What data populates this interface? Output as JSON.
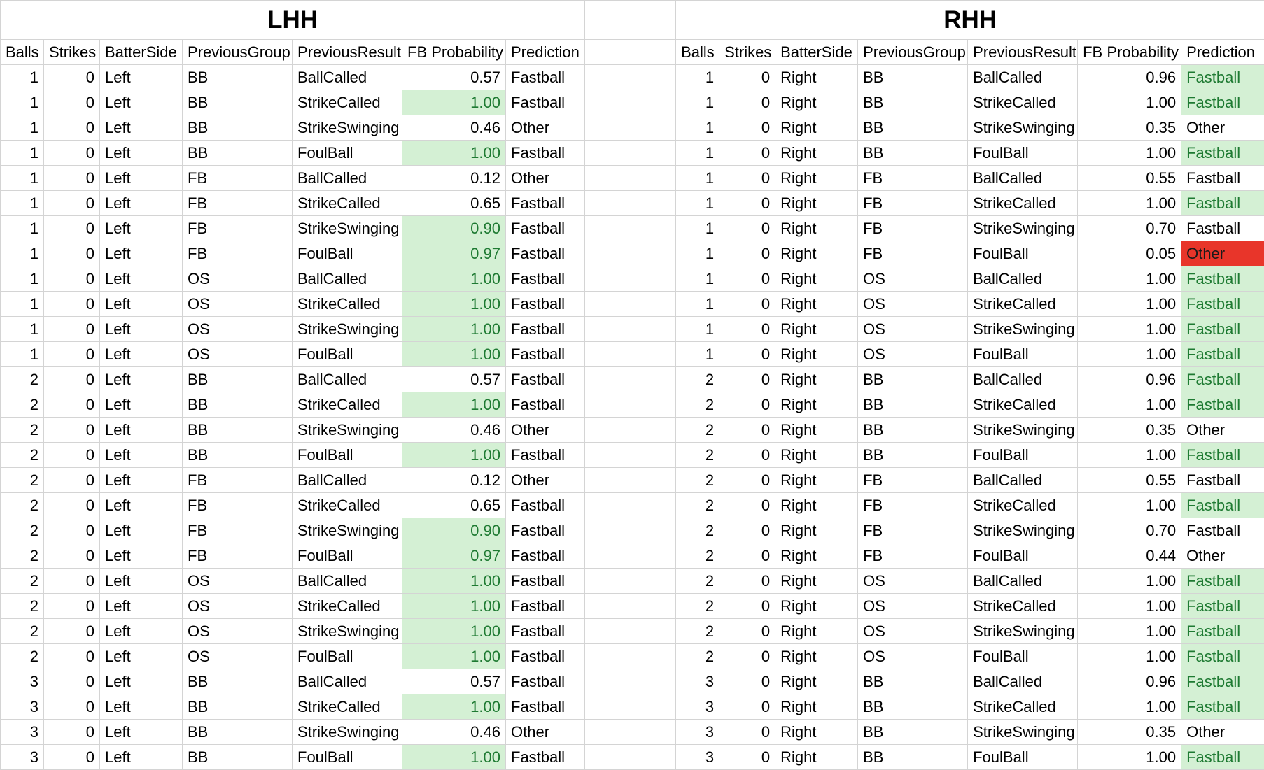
{
  "titles": {
    "lhh": "LHH",
    "rhh": "RHH"
  },
  "headers": [
    "Balls",
    "Strikes",
    "BatterSide",
    "PreviousGroup",
    "PreviousResult",
    "FB Probability",
    "Prediction"
  ],
  "colors": {
    "green_fill": "#d4f0d4",
    "green_text": "#1e7a32",
    "red_fill": "#e8352a",
    "grid": "#d4d4d4"
  },
  "lhh_rows": [
    {
      "balls": "1",
      "strikes": "0",
      "side": "Left",
      "group": "BB",
      "result": "BallCalled",
      "prob": "0.57",
      "pred": "Fastball",
      "prob_hl": ""
    },
    {
      "balls": "1",
      "strikes": "0",
      "side": "Left",
      "group": "BB",
      "result": "StrikeCalled",
      "prob": "1.00",
      "pred": "Fastball",
      "prob_hl": "green"
    },
    {
      "balls": "1",
      "strikes": "0",
      "side": "Left",
      "group": "BB",
      "result": "StrikeSwinging",
      "prob": "0.46",
      "pred": "Other",
      "prob_hl": ""
    },
    {
      "balls": "1",
      "strikes": "0",
      "side": "Left",
      "group": "BB",
      "result": "FoulBall",
      "prob": "1.00",
      "pred": "Fastball",
      "prob_hl": "green"
    },
    {
      "balls": "1",
      "strikes": "0",
      "side": "Left",
      "group": "FB",
      "result": "BallCalled",
      "prob": "0.12",
      "pred": "Other",
      "prob_hl": ""
    },
    {
      "balls": "1",
      "strikes": "0",
      "side": "Left",
      "group": "FB",
      "result": "StrikeCalled",
      "prob": "0.65",
      "pred": "Fastball",
      "prob_hl": ""
    },
    {
      "balls": "1",
      "strikes": "0",
      "side": "Left",
      "group": "FB",
      "result": "StrikeSwinging",
      "prob": "0.90",
      "pred": "Fastball",
      "prob_hl": "green"
    },
    {
      "balls": "1",
      "strikes": "0",
      "side": "Left",
      "group": "FB",
      "result": "FoulBall",
      "prob": "0.97",
      "pred": "Fastball",
      "prob_hl": "green"
    },
    {
      "balls": "1",
      "strikes": "0",
      "side": "Left",
      "group": "OS",
      "result": "BallCalled",
      "prob": "1.00",
      "pred": "Fastball",
      "prob_hl": "green"
    },
    {
      "balls": "1",
      "strikes": "0",
      "side": "Left",
      "group": "OS",
      "result": "StrikeCalled",
      "prob": "1.00",
      "pred": "Fastball",
      "prob_hl": "green"
    },
    {
      "balls": "1",
      "strikes": "0",
      "side": "Left",
      "group": "OS",
      "result": "StrikeSwinging",
      "prob": "1.00",
      "pred": "Fastball",
      "prob_hl": "green"
    },
    {
      "balls": "1",
      "strikes": "0",
      "side": "Left",
      "group": "OS",
      "result": "FoulBall",
      "prob": "1.00",
      "pred": "Fastball",
      "prob_hl": "green"
    },
    {
      "balls": "2",
      "strikes": "0",
      "side": "Left",
      "group": "BB",
      "result": "BallCalled",
      "prob": "0.57",
      "pred": "Fastball",
      "prob_hl": ""
    },
    {
      "balls": "2",
      "strikes": "0",
      "side": "Left",
      "group": "BB",
      "result": "StrikeCalled",
      "prob": "1.00",
      "pred": "Fastball",
      "prob_hl": "green"
    },
    {
      "balls": "2",
      "strikes": "0",
      "side": "Left",
      "group": "BB",
      "result": "StrikeSwinging",
      "prob": "0.46",
      "pred": "Other",
      "prob_hl": ""
    },
    {
      "balls": "2",
      "strikes": "0",
      "side": "Left",
      "group": "BB",
      "result": "FoulBall",
      "prob": "1.00",
      "pred": "Fastball",
      "prob_hl": "green"
    },
    {
      "balls": "2",
      "strikes": "0",
      "side": "Left",
      "group": "FB",
      "result": "BallCalled",
      "prob": "0.12",
      "pred": "Other",
      "prob_hl": ""
    },
    {
      "balls": "2",
      "strikes": "0",
      "side": "Left",
      "group": "FB",
      "result": "StrikeCalled",
      "prob": "0.65",
      "pred": "Fastball",
      "prob_hl": ""
    },
    {
      "balls": "2",
      "strikes": "0",
      "side": "Left",
      "group": "FB",
      "result": "StrikeSwinging",
      "prob": "0.90",
      "pred": "Fastball",
      "prob_hl": "green"
    },
    {
      "balls": "2",
      "strikes": "0",
      "side": "Left",
      "group": "FB",
      "result": "FoulBall",
      "prob": "0.97",
      "pred": "Fastball",
      "prob_hl": "green"
    },
    {
      "balls": "2",
      "strikes": "0",
      "side": "Left",
      "group": "OS",
      "result": "BallCalled",
      "prob": "1.00",
      "pred": "Fastball",
      "prob_hl": "green"
    },
    {
      "balls": "2",
      "strikes": "0",
      "side": "Left",
      "group": "OS",
      "result": "StrikeCalled",
      "prob": "1.00",
      "pred": "Fastball",
      "prob_hl": "green"
    },
    {
      "balls": "2",
      "strikes": "0",
      "side": "Left",
      "group": "OS",
      "result": "StrikeSwinging",
      "prob": "1.00",
      "pred": "Fastball",
      "prob_hl": "green"
    },
    {
      "balls": "2",
      "strikes": "0",
      "side": "Left",
      "group": "OS",
      "result": "FoulBall",
      "prob": "1.00",
      "pred": "Fastball",
      "prob_hl": "green"
    },
    {
      "balls": "3",
      "strikes": "0",
      "side": "Left",
      "group": "BB",
      "result": "BallCalled",
      "prob": "0.57",
      "pred": "Fastball",
      "prob_hl": ""
    },
    {
      "balls": "3",
      "strikes": "0",
      "side": "Left",
      "group": "BB",
      "result": "StrikeCalled",
      "prob": "1.00",
      "pred": "Fastball",
      "prob_hl": "green"
    },
    {
      "balls": "3",
      "strikes": "0",
      "side": "Left",
      "group": "BB",
      "result": "StrikeSwinging",
      "prob": "0.46",
      "pred": "Other",
      "prob_hl": ""
    },
    {
      "balls": "3",
      "strikes": "0",
      "side": "Left",
      "group": "BB",
      "result": "FoulBall",
      "prob": "1.00",
      "pred": "Fastball",
      "prob_hl": "green"
    }
  ],
  "rhh_rows": [
    {
      "balls": "1",
      "strikes": "0",
      "side": "Right",
      "group": "BB",
      "result": "BallCalled",
      "prob": "0.96",
      "pred": "Fastball",
      "pred_hl": "green"
    },
    {
      "balls": "1",
      "strikes": "0",
      "side": "Right",
      "group": "BB",
      "result": "StrikeCalled",
      "prob": "1.00",
      "pred": "Fastball",
      "pred_hl": "green"
    },
    {
      "balls": "1",
      "strikes": "0",
      "side": "Right",
      "group": "BB",
      "result": "StrikeSwinging",
      "prob": "0.35",
      "pred": "Other",
      "pred_hl": ""
    },
    {
      "balls": "1",
      "strikes": "0",
      "side": "Right",
      "group": "BB",
      "result": "FoulBall",
      "prob": "1.00",
      "pred": "Fastball",
      "pred_hl": "green"
    },
    {
      "balls": "1",
      "strikes": "0",
      "side": "Right",
      "group": "FB",
      "result": "BallCalled",
      "prob": "0.55",
      "pred": "Fastball",
      "pred_hl": ""
    },
    {
      "balls": "1",
      "strikes": "0",
      "side": "Right",
      "group": "FB",
      "result": "StrikeCalled",
      "prob": "1.00",
      "pred": "Fastball",
      "pred_hl": "green"
    },
    {
      "balls": "1",
      "strikes": "0",
      "side": "Right",
      "group": "FB",
      "result": "StrikeSwinging",
      "prob": "0.70",
      "pred": "Fastball",
      "pred_hl": ""
    },
    {
      "balls": "1",
      "strikes": "0",
      "side": "Right",
      "group": "FB",
      "result": "FoulBall",
      "prob": "0.05",
      "pred": "Other",
      "pred_hl": "red"
    },
    {
      "balls": "1",
      "strikes": "0",
      "side": "Right",
      "group": "OS",
      "result": "BallCalled",
      "prob": "1.00",
      "pred": "Fastball",
      "pred_hl": "green"
    },
    {
      "balls": "1",
      "strikes": "0",
      "side": "Right",
      "group": "OS",
      "result": "StrikeCalled",
      "prob": "1.00",
      "pred": "Fastball",
      "pred_hl": "green"
    },
    {
      "balls": "1",
      "strikes": "0",
      "side": "Right",
      "group": "OS",
      "result": "StrikeSwinging",
      "prob": "1.00",
      "pred": "Fastball",
      "pred_hl": "green"
    },
    {
      "balls": "1",
      "strikes": "0",
      "side": "Right",
      "group": "OS",
      "result": "FoulBall",
      "prob": "1.00",
      "pred": "Fastball",
      "pred_hl": "green"
    },
    {
      "balls": "2",
      "strikes": "0",
      "side": "Right",
      "group": "BB",
      "result": "BallCalled",
      "prob": "0.96",
      "pred": "Fastball",
      "pred_hl": "green"
    },
    {
      "balls": "2",
      "strikes": "0",
      "side": "Right",
      "group": "BB",
      "result": "StrikeCalled",
      "prob": "1.00",
      "pred": "Fastball",
      "pred_hl": "green"
    },
    {
      "balls": "2",
      "strikes": "0",
      "side": "Right",
      "group": "BB",
      "result": "StrikeSwinging",
      "prob": "0.35",
      "pred": "Other",
      "pred_hl": ""
    },
    {
      "balls": "2",
      "strikes": "0",
      "side": "Right",
      "group": "BB",
      "result": "FoulBall",
      "prob": "1.00",
      "pred": "Fastball",
      "pred_hl": "green"
    },
    {
      "balls": "2",
      "strikes": "0",
      "side": "Right",
      "group": "FB",
      "result": "BallCalled",
      "prob": "0.55",
      "pred": "Fastball",
      "pred_hl": ""
    },
    {
      "balls": "2",
      "strikes": "0",
      "side": "Right",
      "group": "FB",
      "result": "StrikeCalled",
      "prob": "1.00",
      "pred": "Fastball",
      "pred_hl": "green"
    },
    {
      "balls": "2",
      "strikes": "0",
      "side": "Right",
      "group": "FB",
      "result": "StrikeSwinging",
      "prob": "0.70",
      "pred": "Fastball",
      "pred_hl": ""
    },
    {
      "balls": "2",
      "strikes": "0",
      "side": "Right",
      "group": "FB",
      "result": "FoulBall",
      "prob": "0.44",
      "pred": "Other",
      "pred_hl": ""
    },
    {
      "balls": "2",
      "strikes": "0",
      "side": "Right",
      "group": "OS",
      "result": "BallCalled",
      "prob": "1.00",
      "pred": "Fastball",
      "pred_hl": "green"
    },
    {
      "balls": "2",
      "strikes": "0",
      "side": "Right",
      "group": "OS",
      "result": "StrikeCalled",
      "prob": "1.00",
      "pred": "Fastball",
      "pred_hl": "green"
    },
    {
      "balls": "2",
      "strikes": "0",
      "side": "Right",
      "group": "OS",
      "result": "StrikeSwinging",
      "prob": "1.00",
      "pred": "Fastball",
      "pred_hl": "green"
    },
    {
      "balls": "2",
      "strikes": "0",
      "side": "Right",
      "group": "OS",
      "result": "FoulBall",
      "prob": "1.00",
      "pred": "Fastball",
      "pred_hl": "green"
    },
    {
      "balls": "3",
      "strikes": "0",
      "side": "Right",
      "group": "BB",
      "result": "BallCalled",
      "prob": "0.96",
      "pred": "Fastball",
      "pred_hl": "green"
    },
    {
      "balls": "3",
      "strikes": "0",
      "side": "Right",
      "group": "BB",
      "result": "StrikeCalled",
      "prob": "1.00",
      "pred": "Fastball",
      "pred_hl": "green"
    },
    {
      "balls": "3",
      "strikes": "0",
      "side": "Right",
      "group": "BB",
      "result": "StrikeSwinging",
      "prob": "0.35",
      "pred": "Other",
      "pred_hl": ""
    },
    {
      "balls": "3",
      "strikes": "0",
      "side": "Right",
      "group": "BB",
      "result": "FoulBall",
      "prob": "1.00",
      "pred": "Fastball",
      "pred_hl": "green"
    }
  ]
}
